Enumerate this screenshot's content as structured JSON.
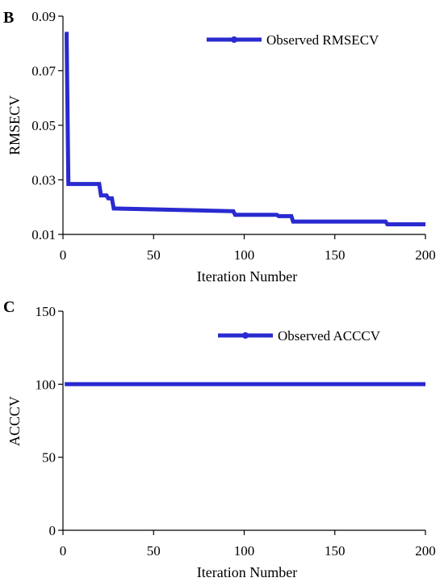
{
  "panels": {
    "B": {
      "letter": "B"
    },
    "C": {
      "letter": "C"
    }
  },
  "chart_data": [
    {
      "type": "line",
      "panel": "B",
      "xlabel": "Iteration Number",
      "ylabel": "RMSECV",
      "xlim": [
        0,
        200
      ],
      "ylim": [
        0.01,
        0.09
      ],
      "xticks": [
        "0",
        "50",
        "100",
        "150",
        "200"
      ],
      "yticks": [
        "0.01",
        "0.03",
        "0.05",
        "0.07",
        "0.09"
      ],
      "legend_position": "top-right",
      "grid": false,
      "color": "#2a2ad0",
      "series": [
        {
          "name": "Observed RMSECV",
          "x": [
            1,
            2,
            3,
            4,
            20,
            21,
            24,
            25,
            27,
            28,
            94,
            95,
            118,
            119,
            126,
            127,
            178,
            179,
            200
          ],
          "y": [
            0.0835,
            0.0835,
            0.0285,
            0.0285,
            0.0285,
            0.0243,
            0.0243,
            0.0232,
            0.0232,
            0.0195,
            0.0185,
            0.0172,
            0.0172,
            0.0167,
            0.0167,
            0.0147,
            0.0147,
            0.0137,
            0.0137
          ]
        }
      ]
    },
    {
      "type": "line",
      "panel": "C",
      "xlabel": "Iteration Number",
      "ylabel": "ACCCV",
      "xlim": [
        0,
        200
      ],
      "ylim": [
        0,
        150
      ],
      "xticks": [
        "0",
        "50",
        "100",
        "150",
        "200"
      ],
      "yticks": [
        "0",
        "50",
        "100",
        "150"
      ],
      "legend_position": "top-right",
      "grid": false,
      "color": "#2a2ad0",
      "series": [
        {
          "name": "Observed ACCCV",
          "x": [
            1,
            200
          ],
          "y": [
            100,
            100
          ]
        }
      ]
    }
  ]
}
